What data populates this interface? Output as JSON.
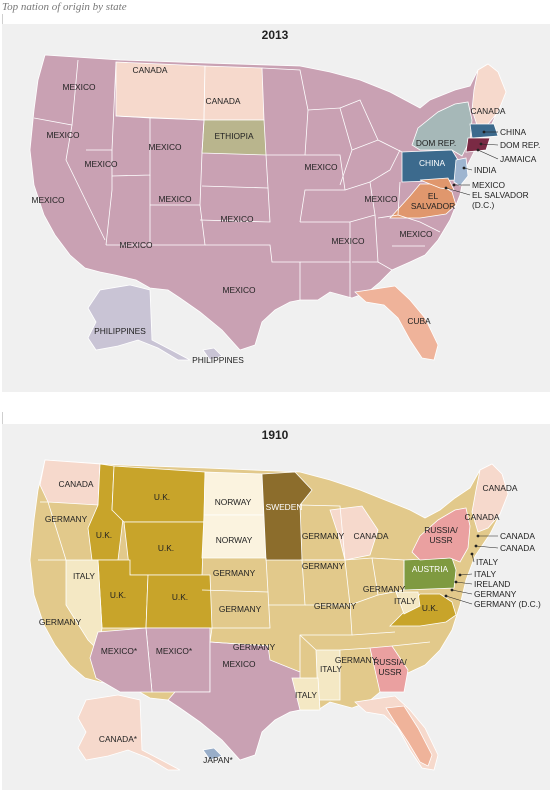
{
  "subtitle": "Top nation of origin by state",
  "colors": {
    "mexico": "#c9a1b3",
    "canada": "#f6d9cc",
    "ethiopia": "#b9b58d",
    "dom_rep": "#a6b8b8",
    "china": "#3c6a8d",
    "jamaica": "#7a2a44",
    "india": "#9eb5d0",
    "el_salvador": "#e0976d",
    "cuba": "#efb39a",
    "philippines": "#c9c4d5",
    "uk": "#c8a42a",
    "germany": "#e2c98b",
    "norway": "#fbf3df",
    "sweden": "#8c6d2c",
    "italy": "#f4e8c4",
    "russia": "#eaa0a0",
    "austria": "#7f9a40",
    "ireland": "#c7a43a",
    "japan": "#99aec9"
  },
  "map_2013": {
    "year": "2013",
    "labels": {
      "mexico": "MEXICO",
      "canada": "CANADA",
      "ethiopia": "ETHIOPIA",
      "dom_rep": "DOM REP.",
      "china": "CHINA",
      "jamaica": "JAMAICA",
      "india": "INDIA",
      "el_salvador_a": "EL",
      "el_salvador_b": "SALVADOR",
      "el_salvador_dc_a": "EL SALVADOR",
      "el_salvador_dc_b": "(D.C.)",
      "cuba": "CUBA",
      "philippines": "PHILIPPINES"
    }
  },
  "map_1910": {
    "year": "1910",
    "labels": {
      "canada": "CANADA",
      "germany": "GERMANY",
      "uk": "U.K.",
      "norway": "NORWAY",
      "sweden": "SWEDEN",
      "italy": "ITALY",
      "mexico": "MEXICO",
      "mexico_star": "MEXICO*",
      "russia_a": "RUSSIA/",
      "russia_b": "USSR",
      "austria": "AUSTRIA",
      "ireland": "IRELAND",
      "germany_dc": "GERMANY (D.C.)",
      "canada_star": "CANADA*",
      "japan_star": "JAPAN*"
    }
  }
}
